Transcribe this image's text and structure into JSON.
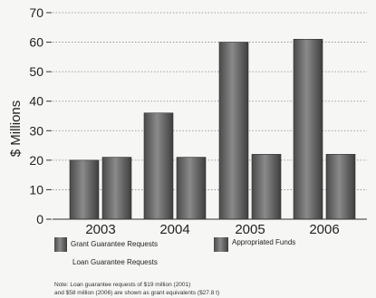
{
  "chart_data": {
    "type": "bar",
    "ylabel": "$ Millions",
    "ylim": [
      0,
      70
    ],
    "yticks": [
      "0",
      "10",
      "20",
      "30",
      "40",
      "50",
      "60",
      "70"
    ],
    "grid": "horizontal-dotted",
    "categories": [
      "2003",
      "2004",
      "2005",
      "2006"
    ],
    "series": [
      {
        "name": "Grant Guarantee Requests",
        "values": [
          20,
          36,
          60,
          61
        ],
        "color": "#6e6e6e"
      },
      {
        "name": "Appropriated Funds",
        "values": [
          21,
          21,
          22,
          22
        ],
        "color": "#5a5a5a"
      }
    ],
    "legend_extra": "Loan Guarantee Requests",
    "note_lines": [
      "Note: Loan guarantee requests of $19 million (2001)",
      "and $58 million (2006) are shown as grant equivalents ($27.8 t)"
    ]
  }
}
